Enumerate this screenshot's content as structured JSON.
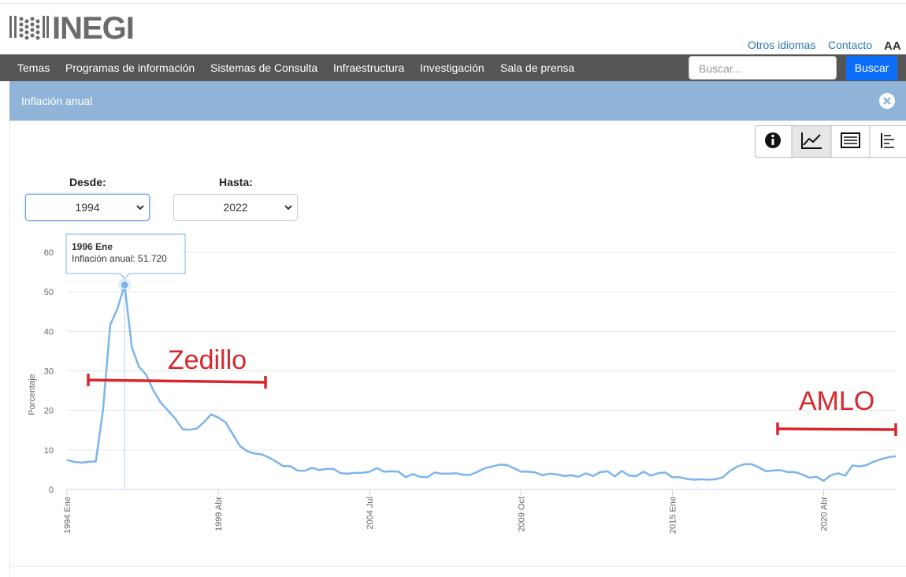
{
  "header": {
    "logo": "INEGI",
    "links": [
      "Otros idiomas",
      "Contacto"
    ],
    "font_size": "AA"
  },
  "nav": {
    "items": [
      "Temas",
      "Programas de información",
      "Sistemas de Consulta",
      "Infraestructura",
      "Investigación",
      "Sala de prensa"
    ],
    "search_placeholder": "Buscar...",
    "search_button": "Buscar"
  },
  "panel": {
    "title": "Inflación anual",
    "from_label": "Desde:",
    "from_value": "1994",
    "to_label": "Hasta:",
    "to_value": "2022"
  },
  "chart_data": {
    "type": "line",
    "y_label": "Porcentaje",
    "color": "#7cb5ec",
    "grid": true,
    "ylim": [
      0,
      60
    ],
    "yticks": [
      0,
      10,
      20,
      30,
      40,
      50,
      60
    ],
    "categories": [
      "1994 Ene",
      null,
      null,
      null,
      null,
      null,
      null,
      null,
      null,
      null,
      null,
      null,
      null,
      null,
      null,
      null,
      null,
      null,
      null,
      null,
      null,
      "1999 Abr",
      null,
      null,
      null,
      null,
      null,
      null,
      null,
      null,
      null,
      null,
      null,
      null,
      null,
      null,
      null,
      null,
      null,
      null,
      null,
      null,
      "2004 Jul",
      null,
      null,
      null,
      null,
      null,
      null,
      null,
      null,
      null,
      null,
      null,
      null,
      null,
      null,
      null,
      null,
      null,
      null,
      null,
      null,
      "2009 Oct",
      null,
      null,
      null,
      null,
      null,
      null,
      null,
      null,
      null,
      null,
      null,
      null,
      null,
      null,
      null,
      null,
      null,
      null,
      null,
      null,
      "2015 Ene",
      null,
      null,
      null,
      null,
      null,
      null,
      null,
      null,
      null,
      null,
      null,
      null,
      null,
      null,
      null,
      null,
      null,
      null,
      null,
      null,
      "2020 Abr",
      null,
      null,
      null,
      null,
      null,
      null,
      null,
      null,
      null,
      null
    ],
    "values": [
      7.5,
      7.0,
      6.8,
      7.0,
      7.1,
      20.0,
      41.6,
      45.7,
      51.72,
      36.0,
      31.0,
      29.0,
      25.0,
      22.0,
      20.0,
      18.0,
      15.3,
      15.1,
      15.4,
      17.0,
      19.0,
      18.2,
      17.0,
      14.0,
      11.0,
      9.7,
      9.1,
      8.9,
      8.1,
      7.1,
      5.9,
      5.9,
      4.8,
      4.7,
      5.5,
      4.9,
      5.2,
      5.2,
      4.1,
      4.0,
      4.2,
      4.2,
      4.5,
      5.4,
      4.5,
      4.6,
      4.5,
      3.1,
      3.9,
      3.2,
      3.1,
      4.3,
      4.0,
      4.0,
      4.1,
      3.7,
      3.7,
      4.5,
      5.4,
      5.8,
      6.3,
      6.2,
      5.4,
      4.5,
      4.5,
      4.3,
      3.6,
      4.0,
      3.8,
      3.4,
      3.6,
      3.2,
      4.1,
      3.4,
      4.4,
      4.6,
      3.3,
      4.7,
      3.5,
      3.4,
      4.5,
      3.5,
      4.1,
      4.3,
      3.1,
      3.1,
      2.7,
      2.5,
      2.6,
      2.5,
      2.6,
      3.1,
      4.7,
      5.8,
      6.4,
      6.4,
      5.6,
      4.6,
      4.8,
      4.9,
      4.4,
      4.4,
      3.8,
      3.0,
      3.2,
      2.2,
      3.6,
      4.1,
      3.5,
      6.1,
      5.8,
      6.2,
      7.1,
      7.7,
      8.2,
      8.4
    ],
    "tooltip": {
      "index": 8,
      "title": "1996 Ene",
      "text": "Inflación anual: 51.720"
    },
    "annotations": [
      "Zedillo",
      "AMLO"
    ]
  }
}
